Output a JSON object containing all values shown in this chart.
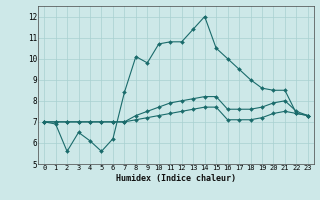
{
  "xlabel": "Humidex (Indice chaleur)",
  "xlim": [
    -0.5,
    23.5
  ],
  "ylim": [
    5,
    12.5
  ],
  "yticks": [
    5,
    6,
    7,
    8,
    9,
    10,
    11,
    12
  ],
  "xticks": [
    0,
    1,
    2,
    3,
    4,
    5,
    6,
    7,
    8,
    9,
    10,
    11,
    12,
    13,
    14,
    15,
    16,
    17,
    18,
    19,
    20,
    21,
    22,
    23
  ],
  "bg_color": "#cde8e8",
  "grid_color": "#a8d0d0",
  "line_color": "#1a6b6b",
  "series": [
    [
      7.0,
      6.9,
      5.6,
      6.5,
      6.1,
      5.6,
      6.2,
      8.4,
      10.1,
      9.8,
      10.7,
      10.8,
      10.8,
      11.4,
      12.0,
      10.5,
      10.0,
      9.5,
      9.0,
      8.6,
      8.5,
      8.5,
      7.4,
      7.3
    ],
    [
      7.0,
      7.0,
      7.0,
      7.0,
      7.0,
      7.0,
      7.0,
      7.0,
      7.1,
      7.2,
      7.3,
      7.4,
      7.5,
      7.6,
      7.7,
      7.7,
      7.1,
      7.1,
      7.1,
      7.2,
      7.4,
      7.5,
      7.4,
      7.3
    ],
    [
      7.0,
      7.0,
      7.0,
      7.0,
      7.0,
      7.0,
      7.0,
      7.0,
      7.3,
      7.5,
      7.7,
      7.9,
      8.0,
      8.1,
      8.2,
      8.2,
      7.6,
      7.6,
      7.6,
      7.7,
      7.9,
      8.0,
      7.5,
      7.3
    ]
  ]
}
